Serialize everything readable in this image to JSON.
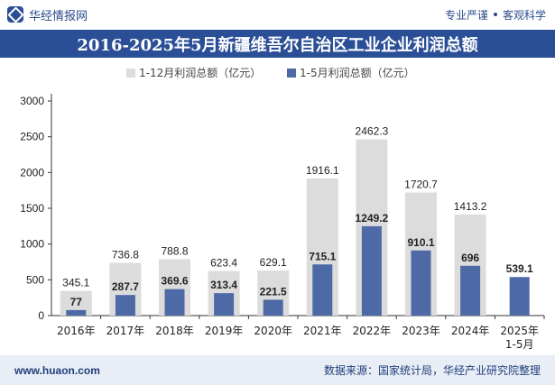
{
  "header": {
    "brand": "华经情报网",
    "tag1": "专业严谨",
    "tag2": "客观科学"
  },
  "colors": {
    "full_year": "#dcdcdc",
    "jan_may": "#4e6aa6",
    "title_bg": "#2b4f96",
    "footer_bg": "#e8edf6"
  },
  "chart_data": {
    "type": "bar",
    "title": "2016-2025年5月新疆维吾尔自治区工业企业利润总额",
    "categories": [
      "2016年",
      "2017年",
      "2018年",
      "2019年",
      "2020年",
      "2021年",
      "2022年",
      "2023年",
      "2024年",
      "2025年\n1-5月"
    ],
    "series": [
      {
        "name": "1-12月利润总额（亿元）",
        "values": [
          345.1,
          736.8,
          788.8,
          623.4,
          629.1,
          1916.1,
          2462.3,
          1720.7,
          1413.2,
          null
        ]
      },
      {
        "name": "1-5月利润总额（亿元）",
        "values": [
          77,
          287.7,
          369.6,
          313.4,
          221.5,
          715.1,
          1249.2,
          910.1,
          696,
          539.1
        ]
      }
    ],
    "value_labels": {
      "full_year": [
        "345.1",
        "736.8",
        "788.8",
        "623.4",
        "629.1",
        "1916.1",
        "2462.3",
        "1720.7",
        "1413.2",
        ""
      ],
      "jan_may": [
        "77",
        "287.7",
        "369.6",
        "313.4",
        "221.5",
        "715.1",
        "1249.2",
        "910.1",
        "696",
        "539.1"
      ]
    },
    "ylim": [
      0,
      3000
    ],
    "yticks": [
      0,
      500,
      1000,
      1500,
      2000,
      2500,
      3000
    ],
    "ytick_labels": [
      "0",
      "500",
      "1000",
      "1500",
      "2000",
      "2500",
      "3000"
    ],
    "legend_position": "top-left",
    "grid": false
  },
  "footer": {
    "website": "www.huaon.com",
    "source": "数据来源：国家统计局，华经产业研究院整理"
  }
}
